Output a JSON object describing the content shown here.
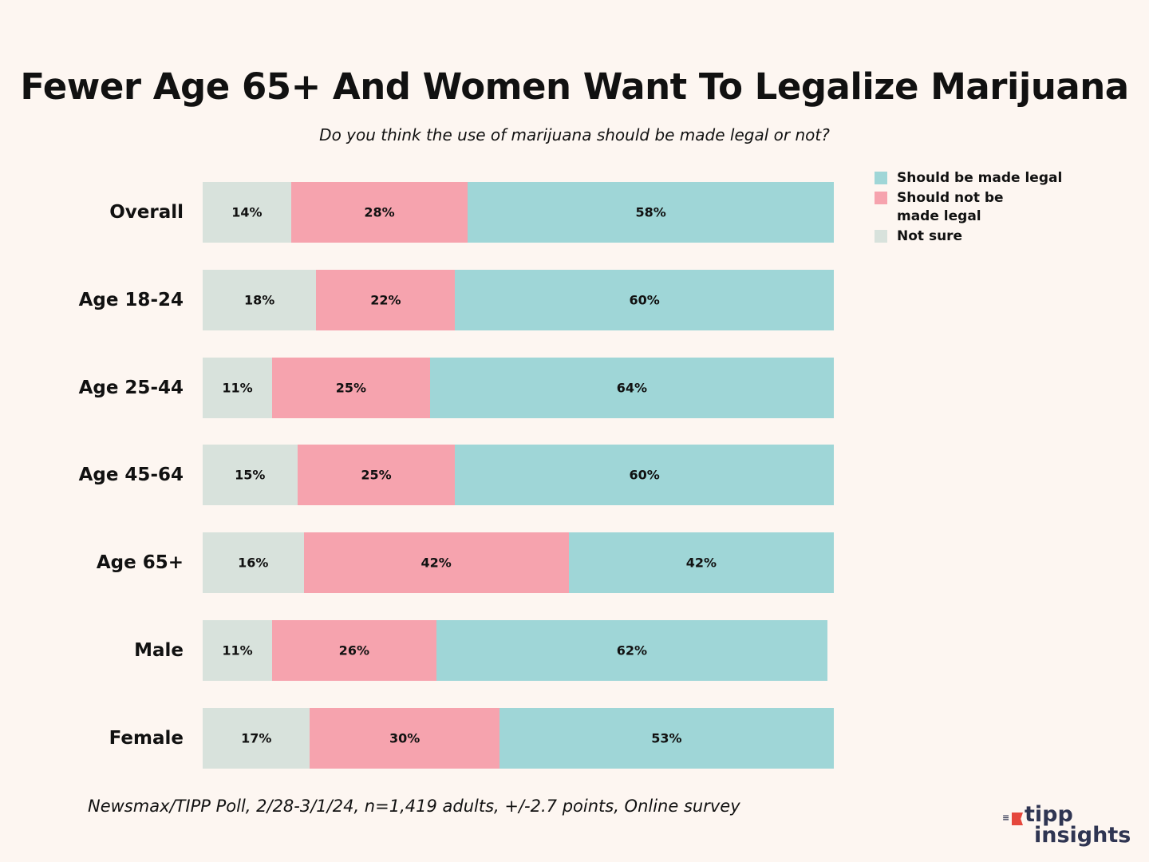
{
  "chart_data": {
    "type": "bar",
    "orientation": "horizontal",
    "stacked": true,
    "title": "Fewer Age 65+ And Women Want To Legalize Marijuana",
    "subtitle": "Do you think the use of marijuana should be made legal or not?",
    "xlabel": "",
    "ylabel": "",
    "xlim": [
      0,
      100
    ],
    "grid": false,
    "legend_position": "top-right",
    "categories": [
      "Overall",
      "Age 18-24",
      "Age 25-44",
      "Age 45-64",
      "Age 65+",
      "Male",
      "Female"
    ],
    "series": [
      {
        "name": "Not sure",
        "color": "#d8e2dc",
        "values": [
          14,
          18,
          11,
          15,
          16,
          11,
          17
        ]
      },
      {
        "name": "Should not be made legal",
        "color": "#f6a3ae",
        "values": [
          28,
          22,
          25,
          25,
          42,
          26,
          30
        ]
      },
      {
        "name": "Should be made legal",
        "color": "#9fd6d7",
        "values": [
          58,
          60,
          64,
          60,
          42,
          62,
          53
        ]
      }
    ],
    "legend_order": [
      "Should be made legal",
      "Should not be made legal",
      "Not sure"
    ],
    "value_suffix": "%",
    "source": "Newsmax/TIPP Poll, 2/28-3/1/24, n=1,419 adults, +/-2.7 points, Online survey"
  },
  "legend": [
    {
      "label": "Should be made legal",
      "color": "#9fd6d7"
    },
    {
      "label": "Should not be made legal",
      "color": "#f6a3ae"
    },
    {
      "label": "Not sure",
      "color": "#d8e2dc"
    }
  ],
  "logo": {
    "line1": "tipp",
    "line2": "insights"
  }
}
